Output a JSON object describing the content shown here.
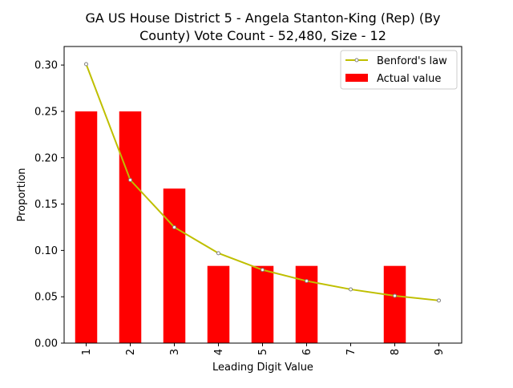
{
  "chart_data": {
    "type": "bar",
    "title_line1": "GA US House District 5 - Angela Stanton-King (Rep) (By",
    "title_line2": "County) Vote Count - 52,480, Size - 12",
    "xlabel": "Leading Digit Value",
    "ylabel": "Proportion",
    "categories": [
      "1",
      "2",
      "3",
      "4",
      "5",
      "6",
      "7",
      "8",
      "9"
    ],
    "ylim": [
      0,
      0.32
    ],
    "yticks": [
      "0.00",
      "0.05",
      "0.10",
      "0.15",
      "0.20",
      "0.25",
      "0.30"
    ],
    "grid": false,
    "legend_position": "top-right",
    "series": [
      {
        "name": "Benford's law",
        "type": "line",
        "color": "#bfbf00",
        "values": [
          0.301,
          0.176,
          0.125,
          0.097,
          0.079,
          0.067,
          0.058,
          0.051,
          0.046
        ]
      },
      {
        "name": "Actual value",
        "type": "bar",
        "color": "#ff0000",
        "values": [
          0.25,
          0.25,
          0.1667,
          0.0833,
          0.0833,
          0.0833,
          0,
          0.0833,
          0
        ]
      }
    ]
  }
}
